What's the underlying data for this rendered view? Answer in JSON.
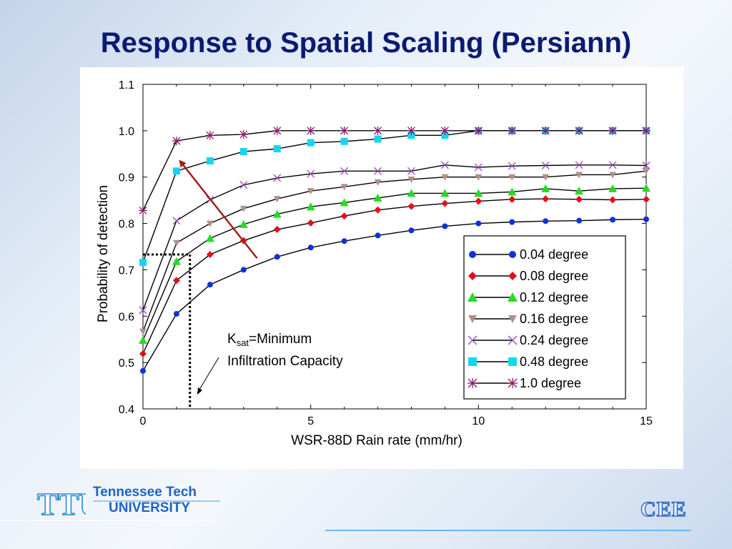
{
  "slide": {
    "title": "Response  to Spatial Scaling (Persiann)"
  },
  "footer": {
    "university_line1": "Tennessee Tech",
    "university_line2": "UNIVERSITY",
    "logo_text": "TTU",
    "dept_logo_text": "CEE"
  },
  "chart_data": {
    "type": "line",
    "xlabel": "WSR-88D Rain rate (mm/hr)",
    "ylabel": "Probability of detection",
    "xlim": [
      0,
      15
    ],
    "ylim": [
      0.4,
      1.1
    ],
    "x_ticks": [
      0,
      5,
      10,
      15
    ],
    "y_ticks": [
      0.4,
      0.5,
      0.6,
      0.7,
      0.8,
      0.9,
      1.0,
      1.1
    ],
    "y_tick_labels": [
      "0.4",
      "0.5",
      "0.6",
      "0.7",
      "0.8",
      "0.9",
      "1.0",
      "1.1"
    ],
    "x_tick_labels": [
      "0",
      "5",
      "10",
      "15"
    ],
    "grid": false,
    "legend_position": "lower-right",
    "annotation": {
      "k_main": "K",
      "k_sub": "sat",
      "k_rest": "=Minimum",
      "line2": "Infiltration Capacity"
    },
    "reference_lines": {
      "x": 1.4,
      "y": 0.733
    },
    "arrow": {
      "from": [
        3.4,
        0.725
      ],
      "to": [
        1.1,
        0.935
      ],
      "color": "#a0201c"
    },
    "series": [
      {
        "name": "0.04 degree",
        "color": "#1030d8",
        "marker": "circle",
        "x": [
          0,
          1,
          2,
          3,
          4,
          5,
          6,
          7,
          8,
          9,
          10,
          11,
          12,
          13,
          14,
          15
        ],
        "y": [
          0.482,
          0.605,
          0.668,
          0.7,
          0.728,
          0.748,
          0.762,
          0.774,
          0.785,
          0.794,
          0.8,
          0.803,
          0.805,
          0.806,
          0.808,
          0.809
        ]
      },
      {
        "name": "0.08 degree",
        "color": "#e0101a",
        "marker": "diamond",
        "x": [
          0,
          1,
          2,
          3,
          4,
          5,
          6,
          7,
          8,
          9,
          10,
          11,
          12,
          13,
          14,
          15
        ],
        "y": [
          0.519,
          0.677,
          0.733,
          0.763,
          0.787,
          0.801,
          0.816,
          0.829,
          0.837,
          0.843,
          0.848,
          0.852,
          0.853,
          0.852,
          0.851,
          0.852
        ]
      },
      {
        "name": "0.12 degree",
        "color": "#22dd22",
        "marker": "triangle-up",
        "x": [
          0,
          1,
          2,
          3,
          4,
          5,
          6,
          7,
          8,
          9,
          10,
          11,
          12,
          13,
          14,
          15
        ],
        "y": [
          0.548,
          0.718,
          0.768,
          0.798,
          0.82,
          0.836,
          0.845,
          0.855,
          0.865,
          0.865,
          0.865,
          0.868,
          0.875,
          0.87,
          0.875,
          0.876
        ]
      },
      {
        "name": "0.16 degree",
        "color": "#b0908a",
        "marker": "triangle-down",
        "x": [
          0,
          1,
          2,
          3,
          4,
          5,
          6,
          7,
          8,
          9,
          10,
          11,
          12,
          13,
          14,
          15
        ],
        "y": [
          0.567,
          0.758,
          0.8,
          0.832,
          0.853,
          0.87,
          0.879,
          0.889,
          0.895,
          0.9,
          0.9,
          0.9,
          0.9,
          0.905,
          0.905,
          0.913
        ]
      },
      {
        "name": "0.24 degree",
        "color": "#9a48b8",
        "marker": "x",
        "x": [
          0,
          1,
          2,
          3,
          4,
          5,
          6,
          7,
          8,
          9,
          10,
          11,
          12,
          13,
          14,
          15
        ],
        "y": [
          0.613,
          0.806,
          0.851,
          0.883,
          0.898,
          0.907,
          0.913,
          0.913,
          0.913,
          0.926,
          0.921,
          0.924,
          0.925,
          0.926,
          0.926,
          0.925
        ]
      },
      {
        "name": "0.48 degree",
        "color": "#12d8ee",
        "marker": "square",
        "x": [
          0,
          1,
          2,
          3,
          4,
          5,
          6,
          7,
          8,
          9,
          10,
          11,
          12,
          13,
          14,
          15
        ],
        "y": [
          0.716,
          0.913,
          0.935,
          0.955,
          0.961,
          0.974,
          0.977,
          0.982,
          0.99,
          0.99,
          1.0,
          1.0,
          1.0,
          1.0,
          1.0,
          1.0
        ]
      },
      {
        "name": "1.0 degree",
        "color": "#8a1a6a",
        "marker": "asterisk",
        "x": [
          0,
          1,
          2,
          3,
          4,
          5,
          6,
          7,
          8,
          9,
          10,
          11,
          12,
          13,
          14,
          15
        ],
        "y": [
          0.828,
          0.978,
          0.99,
          0.992,
          1.0,
          1.0,
          1.0,
          1.0,
          1.0,
          1.0,
          1.0,
          1.0,
          1.0,
          1.0,
          1.0,
          1.0
        ]
      }
    ]
  }
}
